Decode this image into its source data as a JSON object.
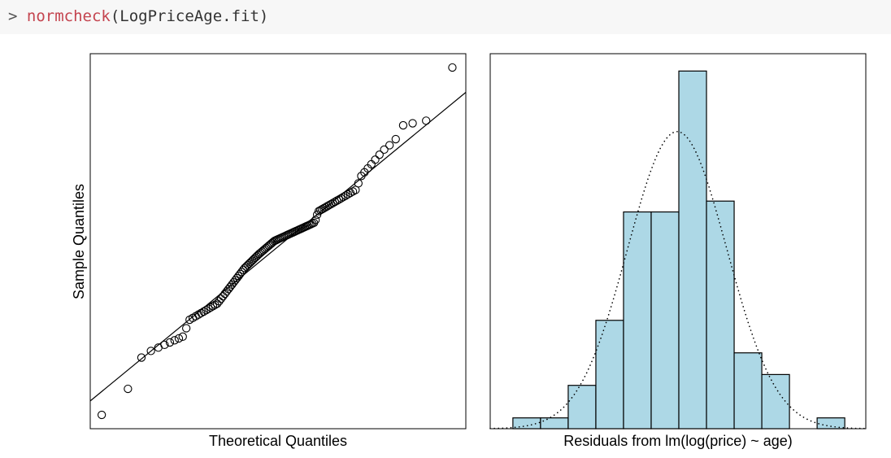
{
  "console": {
    "prompt": ">",
    "function_name": "normcheck",
    "arguments": "(LogPriceAge.fit)"
  },
  "colors": {
    "bar_fill": "#add8e6",
    "code_bg": "#f7f7f7",
    "function": "#c4444f"
  },
  "chart_data": [
    {
      "type": "scatter",
      "title": "",
      "xlabel": "Theoretical Quantiles",
      "ylabel": "Sample Quantiles",
      "n": 123,
      "reference_line": {
        "intercept": 0,
        "slope": 1
      },
      "xlim": [
        -2.82,
        2.85
      ],
      "ylim": [
        -3.33,
        3.56
      ],
      "sample_quantile_profile": [
        [
          -2.65,
          -3.08
        ],
        [
          -2.22,
          -2.56
        ],
        [
          -2.03,
          -1.97
        ],
        [
          -1.39,
          -1.62
        ],
        [
          -1.35,
          -1.35
        ],
        [
          -0.9,
          -1.03
        ],
        [
          -0.49,
          -0.38
        ],
        [
          -0.28,
          -0.13
        ],
        [
          -0.04,
          0.12
        ],
        [
          0.57,
          0.46
        ],
        [
          0.62,
          0.66
        ],
        [
          1.19,
          1.06
        ],
        [
          1.27,
          1.31
        ],
        [
          1.6,
          1.78
        ],
        [
          1.78,
          1.96
        ],
        [
          1.89,
          2.24
        ],
        [
          2.04,
          2.28
        ],
        [
          2.24,
          2.32
        ],
        [
          2.45,
          2.5
        ],
        [
          2.65,
          3.32
        ]
      ]
    },
    {
      "type": "bar",
      "title": "",
      "xlabel": "Residuals from lm(log(price) ~ age)",
      "ylabel": "",
      "counts": [
        1,
        1,
        4,
        10,
        20,
        20,
        33,
        21,
        7,
        5,
        0,
        1
      ],
      "xlim_bins": [
        -0.82,
        12.76
      ],
      "ylim": [
        0,
        34.6
      ],
      "normal_overlay": {
        "mean_bin": 5.94,
        "sd_bins": 1.79,
        "total": 123,
        "style": "dotted"
      }
    }
  ]
}
